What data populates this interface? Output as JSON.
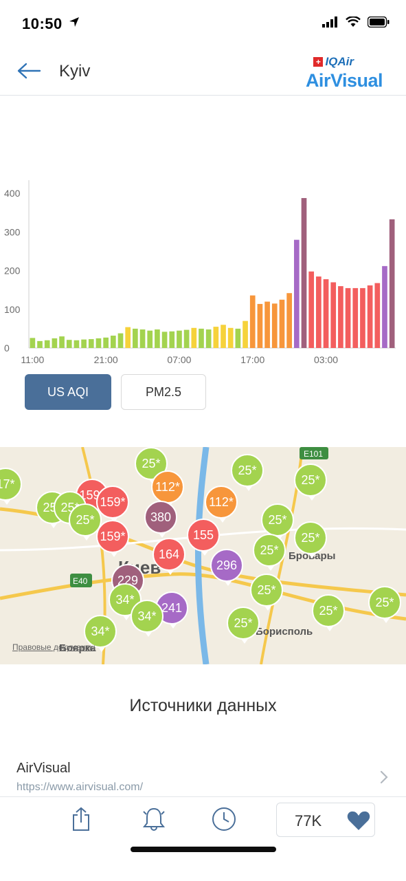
{
  "status_bar": {
    "time": "10:50"
  },
  "header": {
    "city": "Kyiv",
    "brand_top": "IQAir",
    "brand_bottom": "AirVisual"
  },
  "chart_data": {
    "type": "bar",
    "title": "",
    "xlabel": "",
    "ylabel": "",
    "ylim": [
      0,
      420
    ],
    "yticks": [
      0,
      100,
      200,
      300,
      400
    ],
    "xtick_labels": [
      "11:00",
      "21:00",
      "07:00",
      "17:00",
      "03:00"
    ],
    "xtick_indices": [
      0,
      10,
      20,
      30,
      40
    ],
    "values": [
      26,
      18,
      20,
      25,
      30,
      21,
      20,
      22,
      23,
      25,
      27,
      32,
      38,
      54,
      50,
      48,
      45,
      48,
      42,
      43,
      45,
      47,
      52,
      50,
      48,
      55,
      60,
      52,
      50,
      70,
      136,
      114,
      120,
      115,
      125,
      142,
      280,
      388,
      198,
      185,
      178,
      170,
      160,
      155,
      155,
      155,
      162,
      168,
      212,
      333
    ],
    "aqi_colors": {
      "good": "#a3d34f",
      "moderate": "#f6d23b",
      "usg": "#f7963b",
      "unhealthy": "#f35e5e",
      "very_unhealthy": "#a66ac6",
      "hazardous": "#a0607c"
    }
  },
  "toggles": {
    "aqi": "US AQI",
    "pm": "PM2.5"
  },
  "map": {
    "legal": "Правовые документы",
    "places": [
      "Киев",
      "Бровары",
      "Борисполь",
      "Боярка"
    ],
    "road_labels": [
      "E40",
      "E101"
    ],
    "markers": [
      {
        "v": "25*",
        "c": "#a3d34f"
      },
      {
        "v": "25*",
        "c": "#a3d34f"
      },
      {
        "v": "25*",
        "c": "#a3d34f"
      },
      {
        "v": "17*",
        "c": "#a3d34f"
      },
      {
        "v": "159*",
        "c": "#f35e5e"
      },
      {
        "v": "112*",
        "c": "#f7963b"
      },
      {
        "v": "112*",
        "c": "#f7963b"
      },
      {
        "v": "25*",
        "c": "#a3d34f"
      },
      {
        "v": "159*",
        "c": "#f35e5e"
      },
      {
        "v": "25*",
        "c": "#a3d34f"
      },
      {
        "v": "25*",
        "c": "#a3d34f"
      },
      {
        "v": "380",
        "c": "#a0607c"
      },
      {
        "v": "25*",
        "c": "#a3d34f"
      },
      {
        "v": "159*",
        "c": "#f35e5e"
      },
      {
        "v": "155",
        "c": "#f35e5e"
      },
      {
        "v": "25*",
        "c": "#a3d34f"
      },
      {
        "v": "25*",
        "c": "#a3d34f"
      },
      {
        "v": "164",
        "c": "#f35e5e"
      },
      {
        "v": "296",
        "c": "#a66ac6"
      },
      {
        "v": "229",
        "c": "#a0607c"
      },
      {
        "v": "25*",
        "c": "#a3d34f"
      },
      {
        "v": "34*",
        "c": "#a3d34f"
      },
      {
        "v": "241",
        "c": "#a66ac6"
      },
      {
        "v": "34*",
        "c": "#a3d34f"
      },
      {
        "v": "34*",
        "c": "#a3d34f"
      },
      {
        "v": "25*",
        "c": "#a3d34f"
      },
      {
        "v": "25*",
        "c": "#a3d34f"
      },
      {
        "v": "25*",
        "c": "#a3d34f"
      }
    ]
  },
  "sources": {
    "title": "Источники данных",
    "items": [
      {
        "name": "AirVisual",
        "url": "https://www.airvisual.com/"
      }
    ]
  },
  "tab_bar": {
    "likes": "77K"
  }
}
